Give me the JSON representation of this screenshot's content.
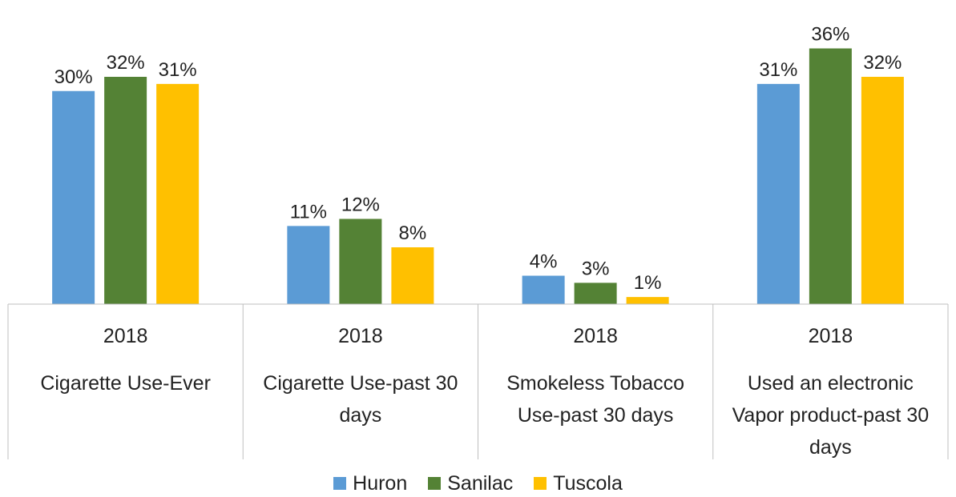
{
  "chart_data": {
    "type": "bar",
    "title": "",
    "xlabel": "",
    "ylabel": "",
    "ylim": [
      0,
      40
    ],
    "grid": false,
    "legend_position": "bottom",
    "categories": [
      {
        "year": "2018",
        "label_lines": [
          "Cigarette Use-Ever"
        ]
      },
      {
        "year": "2018",
        "label_lines": [
          "Cigarette Use-past 30",
          "days"
        ]
      },
      {
        "year": "2018",
        "label_lines": [
          "Smokeless Tobacco",
          "Use-past 30 days"
        ]
      },
      {
        "year": "2018",
        "label_lines": [
          "Used an electronic",
          "Vapor product-past 30",
          "days"
        ]
      }
    ],
    "series": [
      {
        "name": "Huron",
        "color": "#5b9bd5",
        "values": [
          30,
          11,
          4,
          31
        ],
        "data_labels": [
          "30%",
          "11%",
          "4%",
          "31%"
        ]
      },
      {
        "name": "Sanilac",
        "color": "#548235",
        "values": [
          32,
          12,
          3,
          36
        ],
        "data_labels": [
          "32%",
          "12%",
          "3%",
          "36%"
        ]
      },
      {
        "name": "Tuscola",
        "color": "#ffc000",
        "values": [
          31,
          8,
          1,
          32
        ],
        "data_labels": [
          "31%",
          "8%",
          "1%",
          "32%"
        ]
      }
    ]
  }
}
